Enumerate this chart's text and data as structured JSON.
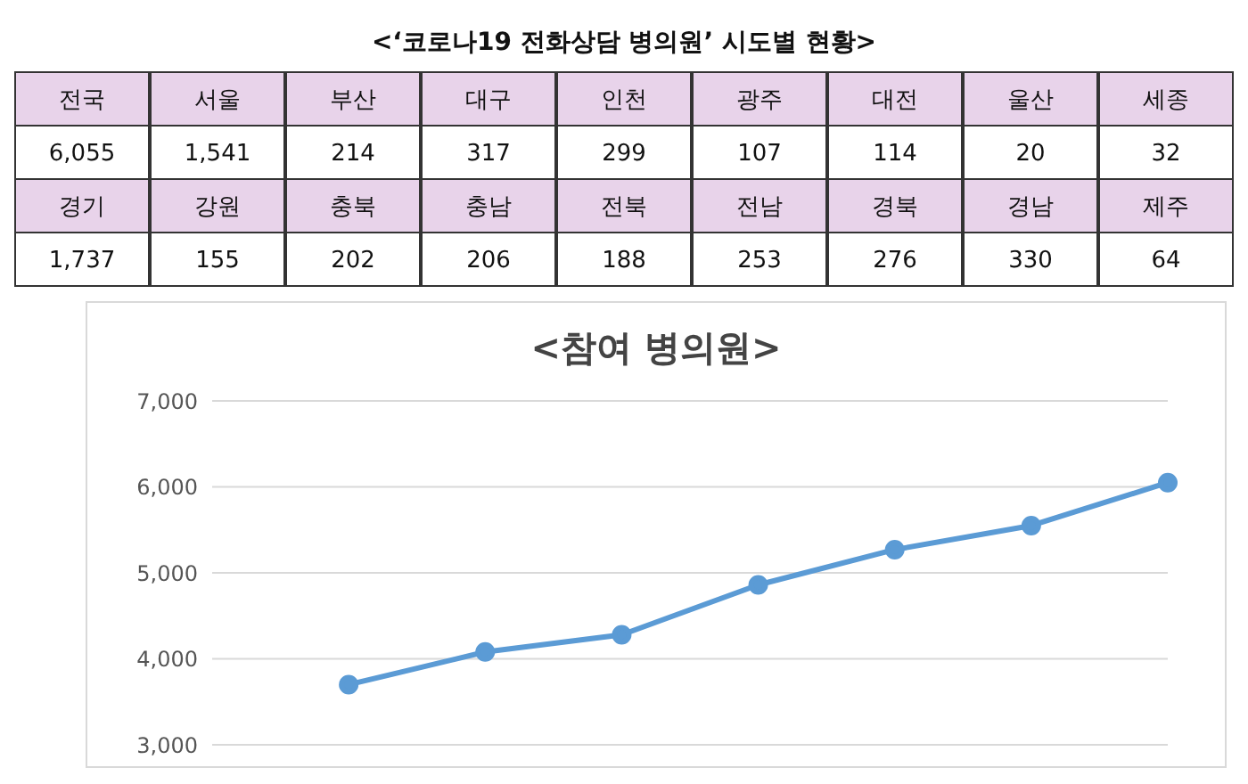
{
  "chart_data": [
    {
      "type": "other",
      "title": "<‘코로나19 전화상담 병의원’ 시도별 현황>",
      "annotations": [
        "전국",
        "서울",
        "부산",
        "대구",
        "인천",
        "광주",
        "대전",
        "울산",
        "세종",
        "6,055",
        "1,541",
        "214",
        "317",
        "299",
        "107",
        "114",
        "20",
        "32",
        "경기",
        "강원",
        "충북",
        "충남",
        "전북",
        "전남",
        "경북",
        "경남",
        "제주",
        "1,737",
        "155",
        "202",
        "206",
        "188",
        "253",
        "276",
        "330",
        "64"
      ]
    },
    {
      "type": "line",
      "title": "<참여 병의원>",
      "categories": [
        null,
        null,
        null,
        null,
        null,
        null,
        null,
        null
      ],
      "series": [
        {
          "color": "#5b9bd5",
          "values": [
            null,
            3700,
            4080,
            4280,
            4860,
            5270,
            5550,
            6050
          ]
        }
      ],
      "ylim": [
        3000,
        7000
      ],
      "yticks": [
        {
          "value": 3000,
          "label": "3,000"
        },
        {
          "value": 4000,
          "label": "4,000"
        },
        {
          "value": 5000,
          "label": "5,000"
        },
        {
          "value": 6000,
          "label": "6,000"
        },
        {
          "value": 7000,
          "label": "7,000"
        }
      ],
      "grid": "y",
      "marker": "circle",
      "tick_labels": "y"
    }
  ]
}
